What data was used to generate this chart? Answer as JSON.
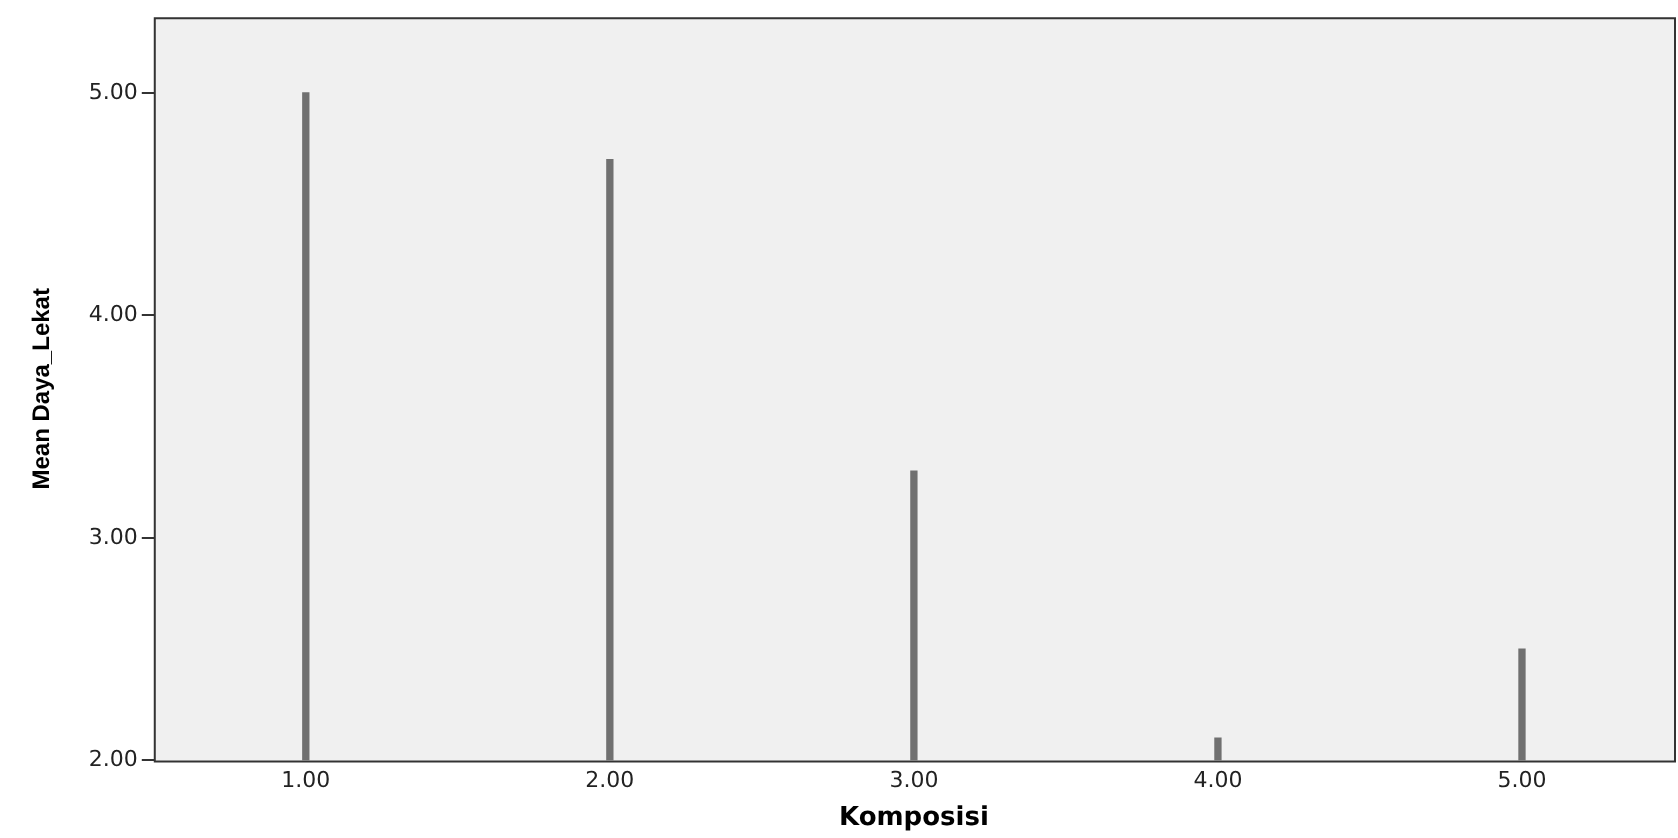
{
  "chart_data": {
    "type": "bar",
    "xlabel": "Komposisi",
    "ylabel": "Mean Daya_Lekat",
    "categories": [
      "1.00",
      "2.00",
      "3.00",
      "4.00",
      "5.00"
    ],
    "values": [
      5.0,
      4.7,
      3.3,
      2.1,
      2.5
    ],
    "color": "#707070",
    "ylim": [
      2,
      5.34
    ],
    "yticks": [
      {
        "value": 2,
        "label": "2.00"
      },
      {
        "value": 3,
        "label": "3.00"
      },
      {
        "value": 4,
        "label": "4.00"
      },
      {
        "value": 5,
        "label": "5.00"
      }
    ],
    "grid": false
  }
}
